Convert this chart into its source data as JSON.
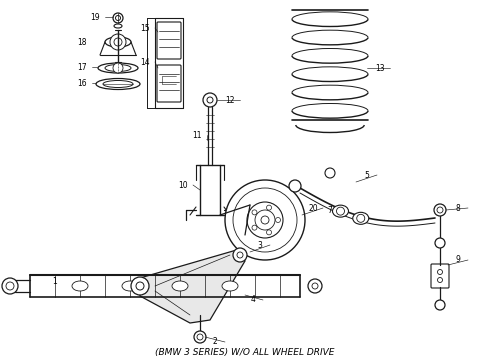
{
  "title": "(BMW 3 SERIES) W/O ALL WHEEL DRIVE",
  "background_color": "#ffffff",
  "line_color": "#1a1a1a",
  "fig_width": 4.9,
  "fig_height": 3.6,
  "dpi": 100
}
